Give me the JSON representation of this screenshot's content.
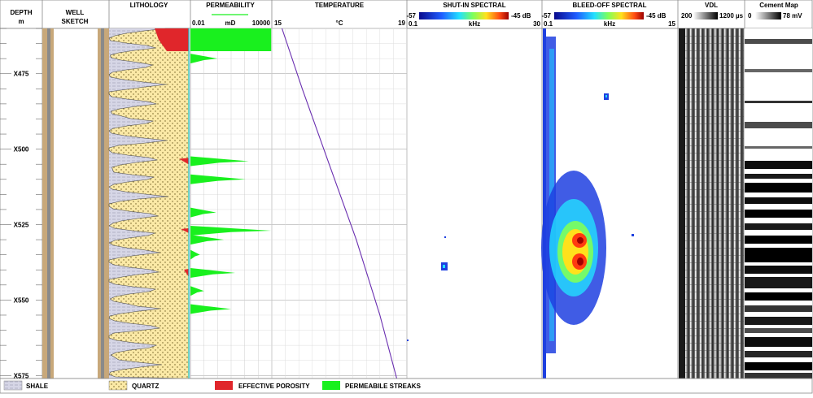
{
  "header": {
    "depth_title": "DEPTH",
    "depth_unit": "m",
    "well_title_1": "WELL",
    "well_title_2": "SKETCH",
    "lithology_title": "LITHOLOGY",
    "permeability_title": "PERMEABILITY",
    "perm_min": "0.01",
    "perm_unit": "mD",
    "perm_max": "10000",
    "temperature_title": "TEMPERATURE",
    "temp_min": "15",
    "temp_unit": "°C",
    "temp_max": "19",
    "shutin_title": "SHUT-IN SPECTRAL",
    "shutin_scale_min": "-57",
    "shutin_scale_max": "-45 dB",
    "shutin_x_min": "0.1",
    "shutin_x_unit": "kHz",
    "shutin_x_max": "30",
    "bleed_title": "BLEED-OFF SPECTRAL",
    "bleed_scale_min": "-57",
    "bleed_scale_max": "-45 dB",
    "bleed_x_min": "0.1",
    "bleed_x_unit": "kHz",
    "bleed_x_max": "15",
    "vdl_title": "VDL",
    "vdl_min": "200",
    "vdl_max": "1200 µs",
    "cement_title": "Cement Map",
    "cement_min": "0",
    "cement_max": "78 mV"
  },
  "legend": {
    "shale": "SHALE",
    "quartz": "QUARTZ",
    "porosity": "EFFECTIVE POROSITY",
    "streaks": "PERMEABILE STREAKS"
  },
  "colors": {
    "shale": "#d6d6e6",
    "quartz": "#fbe9a6",
    "porosity": "#e0262b",
    "streaks": "#19f01e",
    "temperature_line": "#6a2fb0",
    "casing": "#c8a87a"
  },
  "chart_data": {
    "type": "line",
    "depth_axis": {
      "labels": [
        "X475",
        "X500",
        "X525",
        "X550",
        "X575"
      ],
      "values": [
        475,
        500,
        525,
        550,
        575
      ],
      "range": [
        460,
        576
      ]
    },
    "permeability": {
      "scale": "log",
      "range": [
        0.01,
        10000
      ],
      "streaks": [
        {
          "depth": 463,
          "value": 9000
        },
        {
          "depth": 470,
          "value": 1
        },
        {
          "depth": 504,
          "value": 200
        },
        {
          "depth": 510,
          "value": 120
        },
        {
          "depth": 521,
          "value": 0.8
        },
        {
          "depth": 527,
          "value": 9000
        },
        {
          "depth": 530,
          "value": 3
        },
        {
          "depth": 535,
          "value": 0.05
        },
        {
          "depth": 541,
          "value": 20
        },
        {
          "depth": 547,
          "value": 0.1
        },
        {
          "depth": 553,
          "value": 10
        }
      ]
    },
    "temperature": {
      "range": [
        15,
        19
      ],
      "x": [
        15.3,
        15.9,
        16.7,
        17.5,
        18.2,
        18.7
      ],
      "depth": [
        460,
        480,
        505,
        530,
        555,
        576
      ]
    },
    "vdl_range": [
      200,
      1200
    ],
    "cement_range": [
      0,
      78
    ]
  }
}
